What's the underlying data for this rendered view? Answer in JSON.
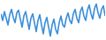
{
  "chart_data": {
    "type": "line",
    "x": [
      0,
      1,
      2,
      3,
      4,
      5,
      6,
      7,
      8,
      9,
      10,
      11,
      12,
      13,
      14,
      15,
      16,
      17,
      18,
      19,
      20,
      21,
      22,
      23,
      24,
      25,
      26,
      27,
      28,
      29,
      30,
      31,
      32,
      33,
      34,
      35,
      36,
      37,
      38,
      39,
      40,
      41,
      42,
      43,
      44,
      45,
      46,
      47,
      48,
      49,
      50,
      51,
      52,
      53,
      54,
      55,
      56,
      57,
      58,
      59
    ],
    "values": [
      70,
      55,
      75,
      60,
      45,
      68,
      80,
      62,
      50,
      72,
      78,
      58,
      40,
      65,
      75,
      55,
      35,
      60,
      70,
      50,
      30,
      55,
      68,
      45,
      25,
      50,
      62,
      40,
      20,
      45,
      58,
      35,
      25,
      50,
      65,
      45,
      40,
      60,
      72,
      55,
      48,
      70,
      80,
      60,
      50,
      75,
      85,
      65,
      55,
      78,
      90,
      70,
      58,
      82,
      92,
      72,
      60,
      80,
      88,
      65
    ],
    "color": "#3b8fd8",
    "xlim": [
      0,
      59
    ],
    "ylim": [
      15,
      97
    ],
    "tick_labels": false
  }
}
